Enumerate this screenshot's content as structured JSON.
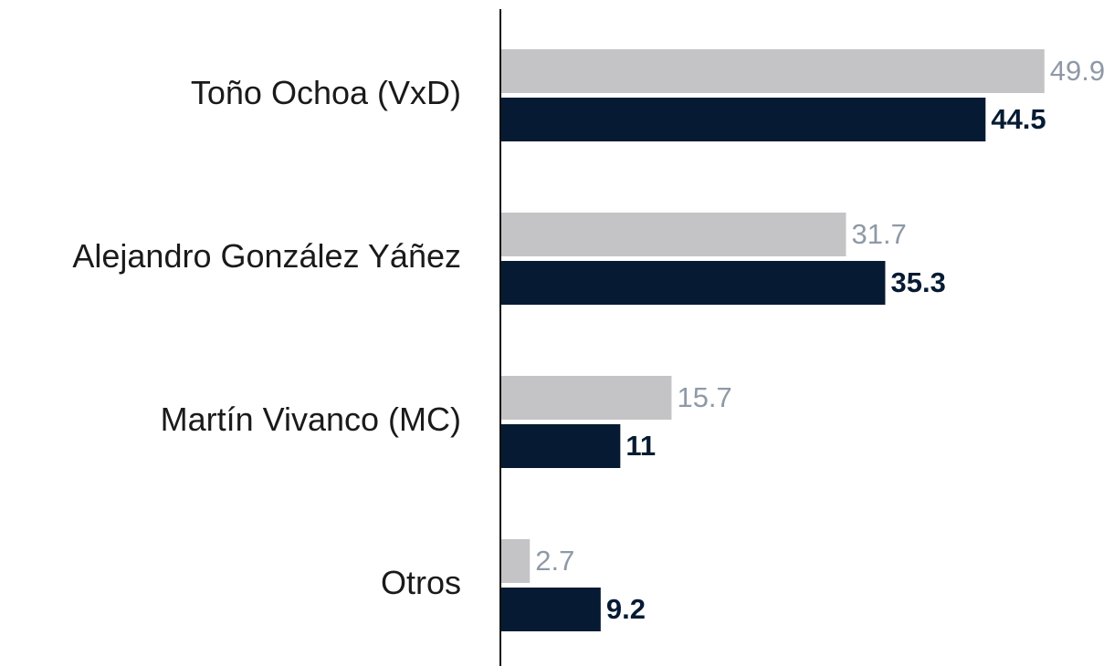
{
  "chart_data": {
    "type": "bar",
    "orientation": "horizontal",
    "categories": [
      "Toño Ochoa (VxD)",
      "Alejandro González Yáñez",
      "Martín Vivanco (MC)",
      "Otros"
    ],
    "series": [
      {
        "color": "#c4c4c6",
        "label_color": "#8f99a6",
        "label_weight": "normal",
        "values": [
          49.9,
          31.7,
          15.7,
          2.7
        ]
      },
      {
        "color": "#061b33",
        "label_color": "#061b33",
        "label_weight": "bold",
        "values": [
          44.5,
          35.3,
          11,
          9.2
        ]
      }
    ],
    "xlim": [
      0,
      50
    ],
    "grid": false
  }
}
